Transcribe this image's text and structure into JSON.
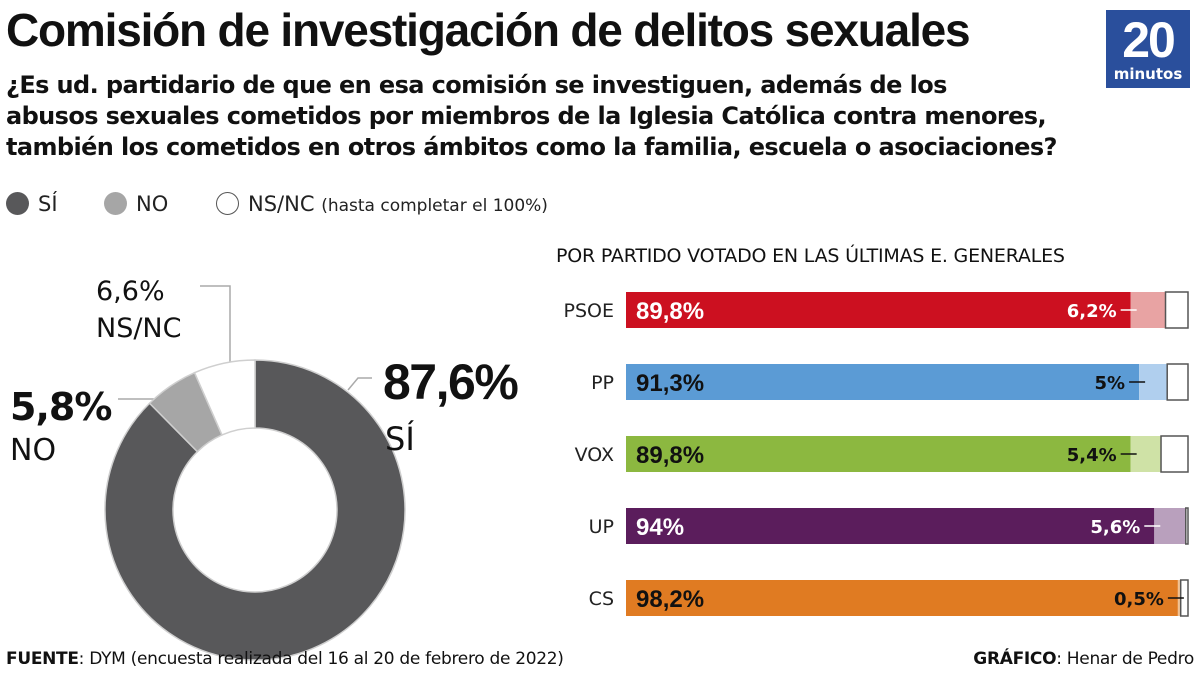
{
  "header": {
    "title": "Comisión de investigación de delitos sexuales",
    "question_lines": [
      "¿Es ud. partidario de que en esa comisión se investiguen, además de los",
      "abusos sexuales cometidos por miembros de la Iglesia Católica contra menores,",
      "también los cometidos en otros ámbitos como la familia, escuela o asociaciones?"
    ]
  },
  "logo": {
    "number": "20",
    "text": "minutos",
    "color": "#2a4f9c"
  },
  "legend": {
    "si": {
      "label": "SÍ",
      "color": "#58585a"
    },
    "no": {
      "label": "NO",
      "color": "#a6a6a6"
    },
    "nsnc": {
      "label": "NS/NC",
      "note": "(hasta completar el 100%)",
      "color": "#ffffff"
    }
  },
  "footer": {
    "source_label": "FUENTE",
    "source_text": ": DYM (encuesta realizada del 16 al 20 de febrero de 2022)",
    "credit_label": "GRÁFICO",
    "credit_text": ": Henar de Pedro"
  },
  "chart_data": [
    {
      "type": "pie",
      "donut": true,
      "slices": [
        {
          "name": "SÍ",
          "value": 87.6,
          "label": "87,6%",
          "color": "#58585a"
        },
        {
          "name": "NO",
          "value": 5.8,
          "label": "5,8%",
          "color": "#a6a6a6"
        },
        {
          "name": "NS/NC",
          "value": 6.6,
          "label": "6,6%",
          "color": "#ffffff"
        }
      ]
    },
    {
      "type": "bar",
      "orientation": "horizontal",
      "stacked": true,
      "title": "POR PARTIDO VOTADO EN LAS ÚLTIMAS E. GENERALES",
      "xlim": [
        0,
        100
      ],
      "categories": [
        "PSOE",
        "PP",
        "VOX",
        "UP",
        "CS"
      ],
      "series": [
        {
          "name": "SÍ",
          "values": [
            89.8,
            91.3,
            89.8,
            94,
            98.2
          ],
          "labels": [
            "89,8%",
            "91,3%",
            "89,8%",
            "94%",
            "98,2%"
          ]
        },
        {
          "name": "NO",
          "values": [
            6.2,
            5,
            5.4,
            5.6,
            0.5
          ],
          "labels": [
            "6,2%",
            "5%",
            "5,4%",
            "5,6%",
            "0,5%"
          ]
        },
        {
          "name": "NS/NC",
          "values": [
            4,
            3.7,
            4.8,
            0.4,
            1.3
          ]
        }
      ],
      "colors": {
        "PSOE": {
          "si": "#cc1020",
          "no": "#e8a3a3"
        },
        "PP": {
          "si": "#5b9bd5",
          "no": "#b0cfee"
        },
        "VOX": {
          "si": "#8cb840",
          "no": "#cfe2a6"
        },
        "UP": {
          "si": "#5b1d5c",
          "no": "#b9a0bd"
        },
        "CS": {
          "si": "#e07b22",
          "no": "#f1c294"
        }
      },
      "si_label_colors": {
        "PSOE": "#ffffff",
        "PP": "#111111",
        "VOX": "#111111",
        "UP": "#ffffff",
        "CS": "#111111"
      },
      "no_label_colors": {
        "PSOE": "#ffffff",
        "PP": "#111111",
        "VOX": "#111111",
        "UP": "#ffffff",
        "CS": "#111111"
      }
    }
  ]
}
